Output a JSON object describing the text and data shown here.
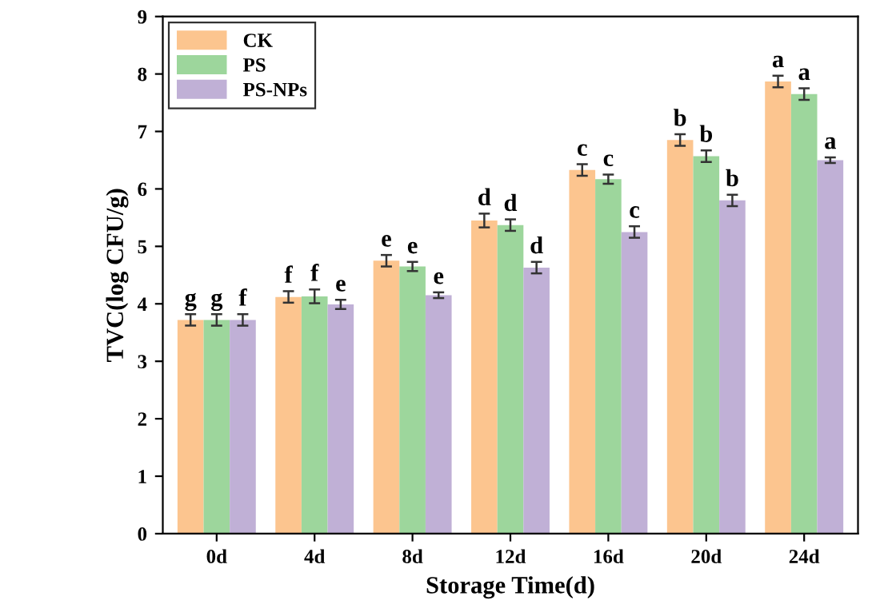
{
  "chart_data": {
    "type": "bar",
    "xlabel": "Storage Time(d)",
    "ylabel": "TVC(log CFU/g)",
    "categories": [
      "0d",
      "4d",
      "8d",
      "12d",
      "16d",
      "20d",
      "24d"
    ],
    "series": [
      {
        "name": "CK",
        "color": "#fcc58f",
        "values": [
          3.72,
          4.12,
          4.75,
          5.45,
          6.33,
          6.85,
          7.87
        ],
        "errors": [
          0.1,
          0.1,
          0.1,
          0.12,
          0.1,
          0.1,
          0.1
        ],
        "value_labels": [
          "g",
          "f",
          "e",
          "d",
          "c",
          "b",
          "a"
        ]
      },
      {
        "name": "PS",
        "color": "#9dd69c",
        "values": [
          3.72,
          4.13,
          4.65,
          5.37,
          6.17,
          6.57,
          7.65
        ],
        "errors": [
          0.1,
          0.12,
          0.08,
          0.1,
          0.08,
          0.1,
          0.1
        ],
        "value_labels": [
          "g",
          "f",
          "e",
          "d",
          "c",
          "b",
          "a"
        ]
      },
      {
        "name": "PS-NPs",
        "color": "#c0b0d6",
        "values": [
          3.72,
          3.99,
          4.15,
          4.63,
          5.25,
          5.8,
          6.5
        ],
        "errors": [
          0.1,
          0.08,
          0.05,
          0.1,
          0.1,
          0.1,
          0.05
        ],
        "value_labels": [
          "f",
          "e",
          "e",
          "d",
          "c",
          "b",
          "a"
        ]
      }
    ],
    "ylim": [
      0,
      9
    ],
    "yticks": [
      0,
      1,
      2,
      3,
      4,
      5,
      6,
      7,
      8,
      9
    ],
    "legend": "top left",
    "grid": false
  }
}
